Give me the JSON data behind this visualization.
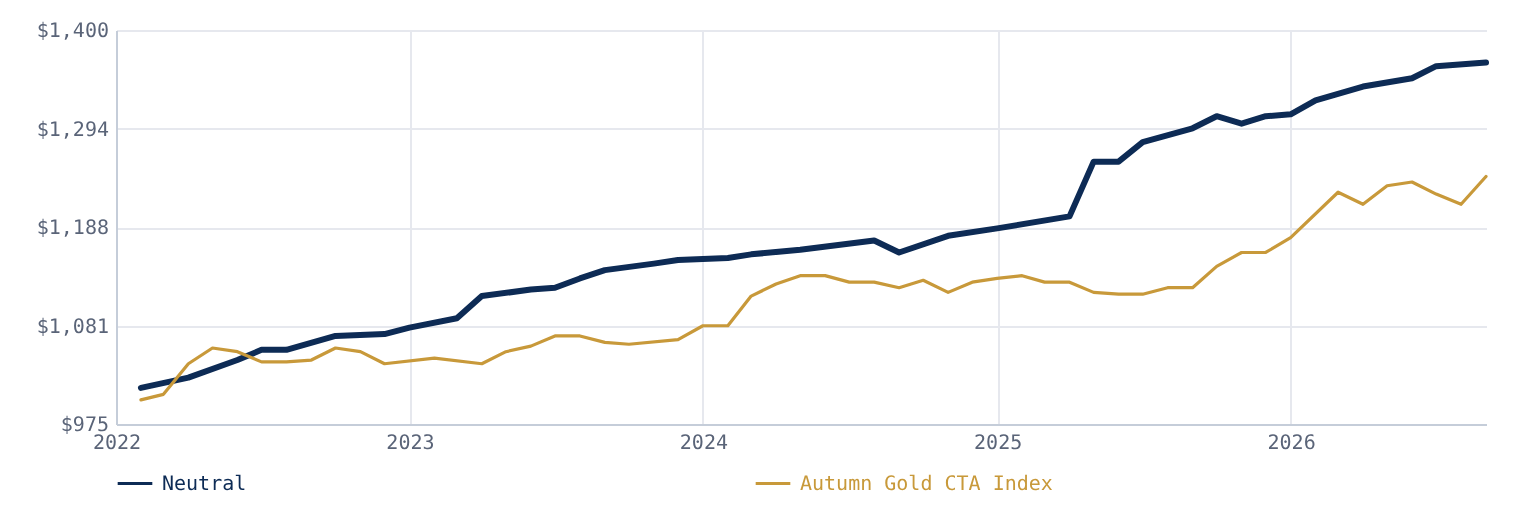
{
  "chart_data": {
    "type": "line",
    "xlim": [
      "2022-01",
      "2026-09"
    ],
    "xticks": [
      "2022",
      "2023",
      "2024",
      "2025",
      "2026"
    ],
    "ylim": [
      975,
      1400
    ],
    "yticks": [
      {
        "value": 975,
        "label": "$975"
      },
      {
        "value": 1081.25,
        "label": "$1,081"
      },
      {
        "value": 1187.5,
        "label": "$1,188"
      },
      {
        "value": 1293.75,
        "label": "$1,294"
      },
      {
        "value": 1400,
        "label": "$1,400"
      }
    ],
    "grid": true,
    "legend": "bottom",
    "marker": "none",
    "line_style": "solid",
    "series": [
      {
        "name": "Neutral",
        "color": "#0d2b55",
        "x": [
          "2022-02",
          "2022-04",
          "2022-06",
          "2022-07",
          "2022-08",
          "2022-10",
          "2022-12",
          "2023-01",
          "2023-03",
          "2023-04",
          "2023-06",
          "2023-07",
          "2023-08",
          "2023-09",
          "2023-11",
          "2023-12",
          "2024-02",
          "2024-03",
          "2024-05",
          "2024-08",
          "2024-09",
          "2024-11",
          "2025-01",
          "2025-04",
          "2025-05",
          "2025-06",
          "2025-07",
          "2025-09",
          "2025-10",
          "2025-11",
          "2025-12",
          "2026-01",
          "2026-02",
          "2026-04",
          "2026-06",
          "2026-07",
          "2026-09"
        ],
        "values": [
          1014,
          1025,
          1044,
          1055,
          1055,
          1070,
          1072,
          1079,
          1089,
          1113,
          1120,
          1122,
          1132,
          1141,
          1148,
          1152,
          1154,
          1158,
          1163,
          1173,
          1160,
          1178,
          1186,
          1199,
          1258,
          1258,
          1279,
          1294,
          1307,
          1299,
          1307,
          1309,
          1324,
          1339,
          1348,
          1361,
          1365
        ]
      },
      {
        "name": "Autumn Gold CTA Index",
        "color": "#c8993a",
        "x": [
          "2022-02",
          "2022-03",
          "2022-04",
          "2022-05",
          "2022-06",
          "2022-07",
          "2022-08",
          "2022-09",
          "2022-10",
          "2022-11",
          "2022-12",
          "2023-02",
          "2023-04",
          "2023-05",
          "2023-06",
          "2023-07",
          "2023-08",
          "2023-09",
          "2023-10",
          "2023-12",
          "2024-01",
          "2024-02",
          "2024-03",
          "2024-04",
          "2024-05",
          "2024-06",
          "2024-07",
          "2024-08",
          "2024-09",
          "2024-10",
          "2024-11",
          "2024-12",
          "2025-01",
          "2025-02",
          "2025-03",
          "2025-04",
          "2025-05",
          "2025-06",
          "2025-07",
          "2025-08",
          "2025-09",
          "2025-10",
          "2025-11",
          "2025-12",
          "2026-01",
          "2026-03",
          "2026-04",
          "2026-05",
          "2026-06",
          "2026-07",
          "2026-08",
          "2026-09"
        ],
        "values": [
          1001,
          1007,
          1040,
          1057,
          1053,
          1042,
          1042,
          1044,
          1057,
          1053,
          1040,
          1046,
          1040,
          1053,
          1059,
          1070,
          1070,
          1063,
          1061,
          1066,
          1081,
          1081,
          1113,
          1126,
          1135,
          1135,
          1128,
          1128,
          1122,
          1130,
          1117,
          1128,
          1132,
          1135,
          1128,
          1128,
          1117,
          1115,
          1115,
          1122,
          1122,
          1145,
          1160,
          1160,
          1176,
          1225,
          1212,
          1232,
          1236,
          1223,
          1212,
          1242
        ]
      }
    ]
  }
}
